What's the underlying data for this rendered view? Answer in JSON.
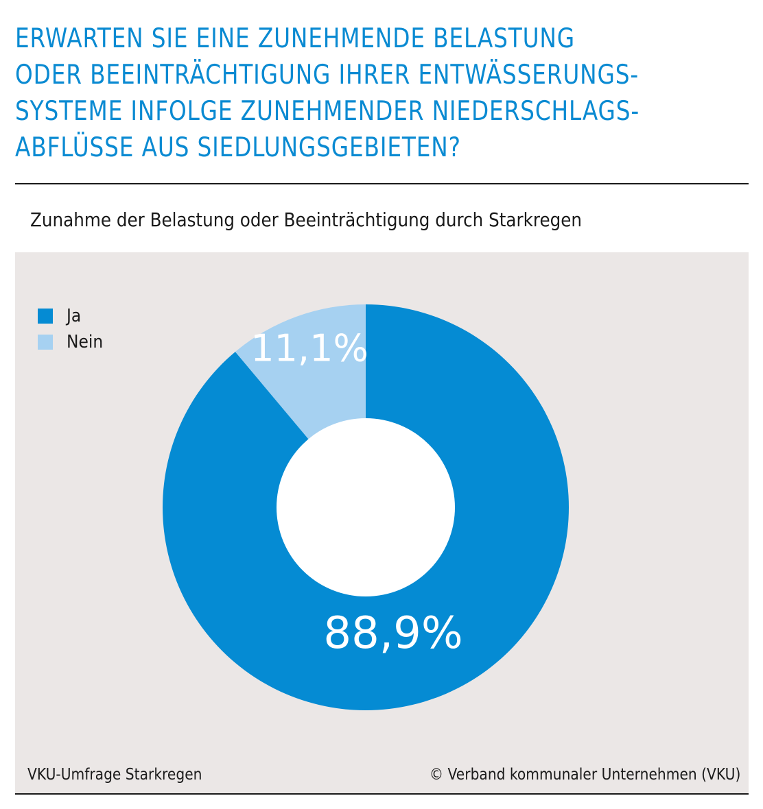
{
  "title_lines": [
    "ERWARTEN SIE EINE ZUNEHMENDE BELASTUNG",
    "ODER BEEINTRÄCHTIGUNG IHRER ENTWÄSSERUNGS-",
    "SYSTEME INFOLGE ZUNEHMENDER NIEDERSCHLAGS-",
    "ABFLÜSSE AUS SIEDLUNGSGEBIETEN?"
  ],
  "subtitle": "Zunahme der Belastung oder Beeinträchtigung durch Starkregen",
  "colors": {
    "title": "#0a8ad2",
    "ja": "#058bd3",
    "nein": "#a6d1f1",
    "panel_background": "#ebe7e6",
    "hole": "#ffffff"
  },
  "legend": [
    {
      "label": "Ja",
      "color": "#058bd3"
    },
    {
      "label": "Nein",
      "color": "#a6d1f1"
    }
  ],
  "chart_data": {
    "type": "pie",
    "subtype": "donut",
    "title": "Zunahme der Belastung oder Beeinträchtigung durch Starkregen",
    "categories": [
      "Ja",
      "Nein"
    ],
    "values": [
      88.9,
      11.1
    ],
    "value_labels": [
      "88,9%",
      "11,1%"
    ],
    "colors": [
      "#058bd3",
      "#a6d1f1"
    ],
    "legend_position": "top-left",
    "start": "12 o'clock, clockwise"
  },
  "footer": {
    "source": "VKU-Umfrage Starkregen",
    "copyright": "© Verband kommunaler Unternehmen (VKU)"
  }
}
